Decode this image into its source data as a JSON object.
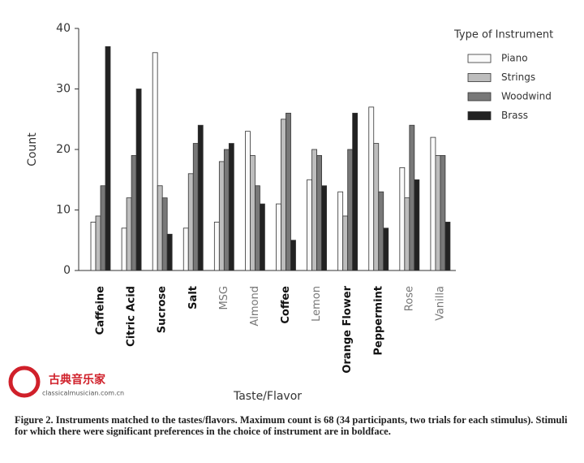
{
  "chart_data": {
    "type": "bar",
    "x_label": "Taste/Flavor",
    "y_label": "Count",
    "categories": [
      "Caffeine",
      "Citric Acid",
      "Sucrose",
      "Salt",
      "MSG",
      "Almond",
      "Coffee",
      "Lemon",
      "Orange Flower",
      "Peppermint",
      "Rose",
      "Vanilla"
    ],
    "bold": [
      true,
      true,
      true,
      true,
      false,
      false,
      true,
      false,
      true,
      true,
      false,
      false
    ],
    "series": [
      {
        "name": "Piano",
        "color": "#fafafa",
        "values": [
          8,
          7,
          36,
          7,
          8,
          23,
          11,
          15,
          13,
          27,
          17,
          22
        ]
      },
      {
        "name": "Strings",
        "color": "#bdbdbd",
        "values": [
          9,
          12,
          14,
          16,
          18,
          19,
          25,
          20,
          9,
          21,
          12,
          19
        ]
      },
      {
        "name": "Woodwind",
        "color": "#787878",
        "values": [
          14,
          19,
          12,
          21,
          20,
          14,
          26,
          19,
          20,
          13,
          24,
          19
        ]
      },
      {
        "name": "Brass",
        "color": "#222222",
        "values": [
          37,
          30,
          6,
          24,
          21,
          11,
          5,
          14,
          26,
          7,
          15,
          8
        ]
      }
    ],
    "legend_title": "Type of Instrument",
    "legend_position": "upper right",
    "ylim": [
      0,
      40
    ],
    "yticks": [
      0,
      10,
      20,
      30,
      40
    ]
  },
  "caption": "Figure 2. Instruments matched to the tastes/flavors. Maximum count is 68 (34 participants, two trials for each stimulus). Stimuli for which there were significant preferences in the choice of instrument are in boldface.",
  "watermark": {
    "name": "古典音乐家",
    "url": "classicalmusician.com.cn"
  }
}
